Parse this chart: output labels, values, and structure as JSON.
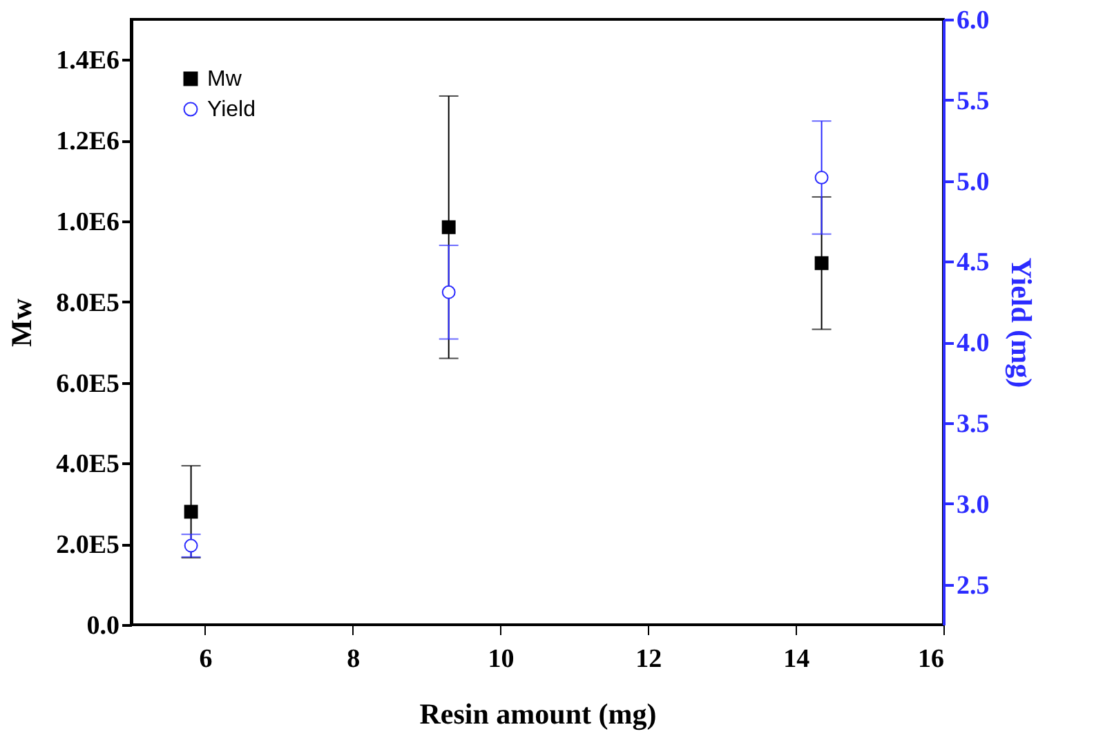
{
  "chart_data": {
    "type": "scatter",
    "xlabel": "Resin amount (mg)",
    "ylabel": "Mw",
    "y2label": "Yield (mg)",
    "x": [
      5.81,
      9.3,
      14.35
    ],
    "series": [
      {
        "name": "Mw",
        "color": "#000000",
        "marker": "square",
        "values": [
          280000,
          985000,
          896000
        ],
        "errors": [
          114000,
          325000,
          164000
        ]
      },
      {
        "name": "Yield",
        "color": "#2b2bff",
        "marker": "circle",
        "axis": "y2",
        "values": [
          2.74,
          4.31,
          5.02
        ],
        "errors": [
          0.07,
          0.29,
          0.35
        ]
      }
    ],
    "xlim": [
      5,
      16
    ],
    "xticks": [
      6,
      8,
      10,
      12,
      14,
      16
    ],
    "ylim": [
      0,
      1500000
    ],
    "yticks": [
      {
        "value": 0,
        "label": "0.0"
      },
      {
        "value": 200000,
        "label": "2.0E5"
      },
      {
        "value": 400000,
        "label": "4.0E5"
      },
      {
        "value": 600000,
        "label": "6.0E5"
      },
      {
        "value": 800000,
        "label": "8.0E5"
      },
      {
        "value": 1000000,
        "label": "1.0E6"
      },
      {
        "value": 1200000,
        "label": "1.2E6"
      },
      {
        "value": 1400000,
        "label": "1.4E6"
      }
    ],
    "y2lim": [
      2.25,
      6.0
    ],
    "y2ticks": [
      {
        "value": 2.5,
        "label": "2.5"
      },
      {
        "value": 3,
        "label": "3.0"
      },
      {
        "value": 3.5,
        "label": "3.5"
      },
      {
        "value": 4,
        "label": "4.0"
      },
      {
        "value": 4.5,
        "label": "4.5"
      },
      {
        "value": 5,
        "label": "5.0"
      },
      {
        "value": 5.5,
        "label": "5.5"
      },
      {
        "value": 6,
        "label": "6.0"
      }
    ],
    "grid": false,
    "legend": "top left"
  }
}
